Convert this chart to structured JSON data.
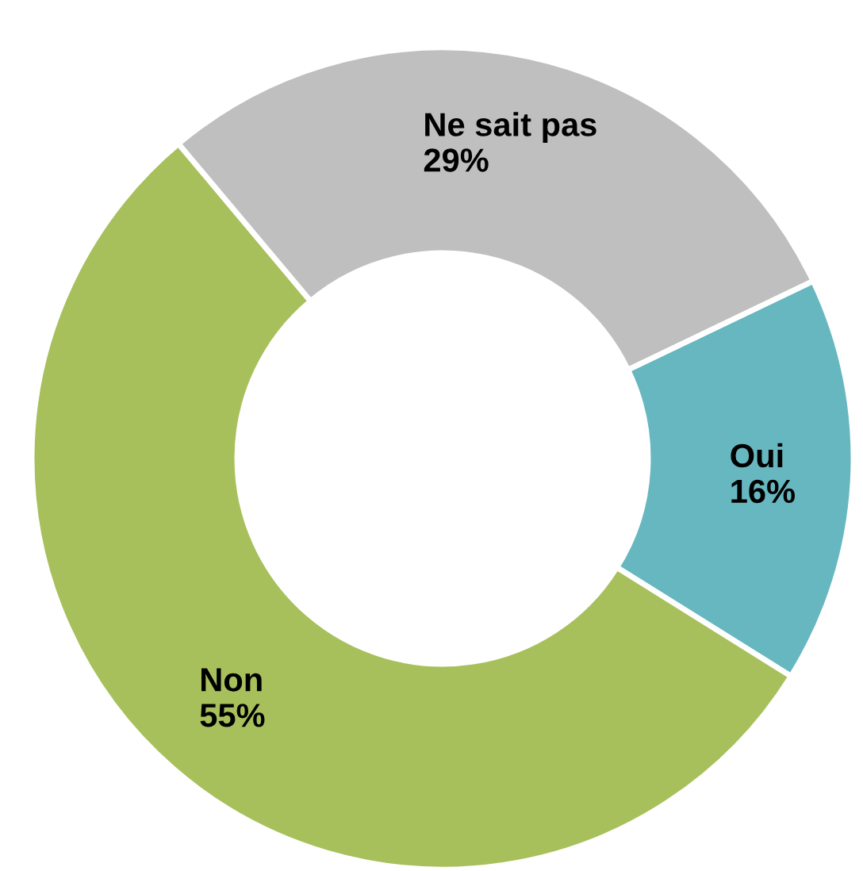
{
  "chart_data": {
    "type": "donut",
    "categories": [
      "Oui",
      "Non",
      "Ne sait pas"
    ],
    "values": [
      16,
      55,
      29
    ],
    "colors": [
      "#67b7c0",
      "#a8c05c",
      "#bfbfbf"
    ],
    "value_labels": [
      "16%",
      "55%",
      "29%"
    ],
    "legend": false
  }
}
